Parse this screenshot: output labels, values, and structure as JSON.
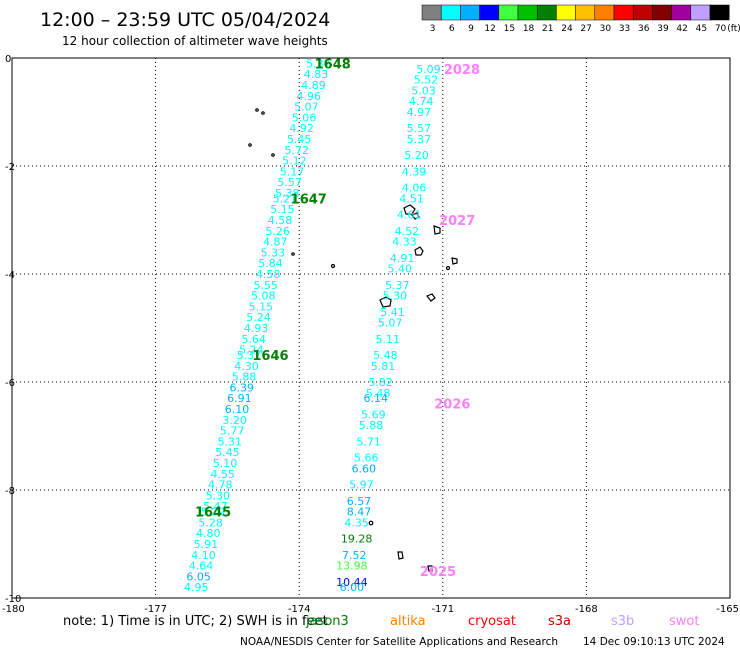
{
  "chart_data": {
    "type": "scatter",
    "title": "12:00 – 23:59 UTC 05/04/2024",
    "subtitle": "12 hour collection of altimeter wave heights",
    "xlim": [
      -180,
      -165
    ],
    "ylim": [
      -10,
      0
    ],
    "x_ticks": [
      "-180",
      "-177",
      "-174",
      "-171",
      "-168",
      "-165"
    ],
    "y_ticks": [
      "0",
      "-2",
      "-4",
      "-6",
      "-8",
      "-10"
    ],
    "grid": true,
    "legend": {
      "position": "top-right",
      "unit": "(ft)",
      "labels": [
        "3",
        "6",
        "9",
        "12",
        "15",
        "18",
        "21",
        "24",
        "27",
        "30",
        "33",
        "36",
        "39",
        "42",
        "45",
        "70"
      ],
      "colors": [
        "#808080",
        "#00ffff",
        "#00b0ff",
        "#0000ff",
        "#40ff40",
        "#00c000",
        "#008000",
        "#ffff00",
        "#ffc000",
        "#ff8000",
        "#ff0000",
        "#c00000",
        "#800000",
        "#a000a0",
        "#c0a0ff",
        "#000000"
      ]
    },
    "series": [
      {
        "name": "jason3",
        "color": "#008000",
        "passes": [
          {
            "label": "1648",
            "x": -173.3,
            "y": -0.1
          },
          {
            "label": "1647",
            "x": -173.8,
            "y": -2.6
          },
          {
            "label": "1646",
            "x": -174.6,
            "y": -5.5
          },
          {
            "label": "1645",
            "x": -175.8,
            "y": -8.4
          }
        ],
        "points": [
          {
            "x": -173.6,
            "y": -0.1,
            "v": "5.37",
            "c": "#00ffff"
          },
          {
            "x": -173.65,
            "y": -0.3,
            "v": "4.83",
            "c": "#00ffff"
          },
          {
            "x": -173.7,
            "y": -0.5,
            "v": "4.89",
            "c": "#00ffff"
          },
          {
            "x": -173.8,
            "y": -0.7,
            "v": "4.96",
            "c": "#00ffff"
          },
          {
            "x": -173.85,
            "y": -0.9,
            "v": "5.07",
            "c": "#00ffff"
          },
          {
            "x": -173.9,
            "y": -1.1,
            "v": "5.06",
            "c": "#00ffff"
          },
          {
            "x": -173.95,
            "y": -1.3,
            "v": "4.92",
            "c": "#00ffff"
          },
          {
            "x": -174.0,
            "y": -1.5,
            "v": "5.45",
            "c": "#00ffff"
          },
          {
            "x": -174.05,
            "y": -1.7,
            "v": "5.72",
            "c": "#00ffff"
          },
          {
            "x": -174.1,
            "y": -1.9,
            "v": "5.12",
            "c": "#00ffff"
          },
          {
            "x": -174.15,
            "y": -2.1,
            "v": "5.17",
            "c": "#00ffff"
          },
          {
            "x": -174.2,
            "y": -2.3,
            "v": "5.57",
            "c": "#00ffff"
          },
          {
            "x": -174.25,
            "y": -2.5,
            "v": "5.38",
            "c": "#00ffff"
          },
          {
            "x": -174.3,
            "y": -2.6,
            "v": "5.21",
            "c": "#00ffff"
          },
          {
            "x": -174.35,
            "y": -2.8,
            "v": "5.15",
            "c": "#00ffff"
          },
          {
            "x": -174.4,
            "y": -3.0,
            "v": "4.58",
            "c": "#00ffff"
          },
          {
            "x": -174.45,
            "y": -3.2,
            "v": "5.26",
            "c": "#00ffff"
          },
          {
            "x": -174.5,
            "y": -3.4,
            "v": "4.87",
            "c": "#00ffff"
          },
          {
            "x": -174.55,
            "y": -3.6,
            "v": "5.33",
            "c": "#00ffff"
          },
          {
            "x": -174.6,
            "y": -3.8,
            "v": "5.84",
            "c": "#00ffff"
          },
          {
            "x": -174.65,
            "y": -4.0,
            "v": "4.58",
            "c": "#00ffff"
          },
          {
            "x": -174.7,
            "y": -4.2,
            "v": "5.55",
            "c": "#00ffff"
          },
          {
            "x": -174.75,
            "y": -4.4,
            "v": "5.08",
            "c": "#00ffff"
          },
          {
            "x": -174.8,
            "y": -4.6,
            "v": "5.15",
            "c": "#00ffff"
          },
          {
            "x": -174.85,
            "y": -4.8,
            "v": "5.24",
            "c": "#00ffff"
          },
          {
            "x": -174.9,
            "y": -5.0,
            "v": "4.93",
            "c": "#00ffff"
          },
          {
            "x": -174.95,
            "y": -5.2,
            "v": "5.64",
            "c": "#00ffff"
          },
          {
            "x": -175.0,
            "y": -5.4,
            "v": "5.24",
            "c": "#00ffff"
          },
          {
            "x": -175.05,
            "y": -5.5,
            "v": "5.37",
            "c": "#00ffff"
          },
          {
            "x": -175.1,
            "y": -5.7,
            "v": "4.30",
            "c": "#00ffff"
          },
          {
            "x": -175.15,
            "y": -5.9,
            "v": "5.88",
            "c": "#00ffff"
          },
          {
            "x": -175.2,
            "y": -6.1,
            "v": "6.39",
            "c": "#00b0ff"
          },
          {
            "x": -175.25,
            "y": -6.3,
            "v": "6.91",
            "c": "#00b0ff"
          },
          {
            "x": -175.3,
            "y": -6.5,
            "v": "6.10",
            "c": "#00b0ff"
          },
          {
            "x": -175.35,
            "y": -6.7,
            "v": "3.20",
            "c": "#00ffff"
          },
          {
            "x": -175.4,
            "y": -6.9,
            "v": "5.77",
            "c": "#00ffff"
          },
          {
            "x": -175.45,
            "y": -7.1,
            "v": "5.31",
            "c": "#00ffff"
          },
          {
            "x": -175.5,
            "y": -7.3,
            "v": "5.45",
            "c": "#00ffff"
          },
          {
            "x": -175.55,
            "y": -7.5,
            "v": "5.10",
            "c": "#00ffff"
          },
          {
            "x": -175.6,
            "y": -7.7,
            "v": "4.55",
            "c": "#00ffff"
          },
          {
            "x": -175.65,
            "y": -7.9,
            "v": "4.78",
            "c": "#00ffff"
          },
          {
            "x": -175.7,
            "y": -8.1,
            "v": "5.30",
            "c": "#00ffff"
          },
          {
            "x": -175.75,
            "y": -8.3,
            "v": "5.47",
            "c": "#00ffff"
          },
          {
            "x": -175.8,
            "y": -8.4,
            "v": "5.29",
            "c": "#00ffff"
          },
          {
            "x": -175.85,
            "y": -8.6,
            "v": "5.28",
            "c": "#00ffff"
          },
          {
            "x": -175.9,
            "y": -8.8,
            "v": "4.80",
            "c": "#00ffff"
          },
          {
            "x": -175.95,
            "y": -9.0,
            "v": "5.91",
            "c": "#00ffff"
          },
          {
            "x": -176.0,
            "y": -9.2,
            "v": "4.10",
            "c": "#00ffff"
          },
          {
            "x": -176.05,
            "y": -9.4,
            "v": "4.64",
            "c": "#00ffff"
          },
          {
            "x": -176.1,
            "y": -9.6,
            "v": "6.05",
            "c": "#00b0ff"
          },
          {
            "x": -176.15,
            "y": -9.8,
            "v": "4.95",
            "c": "#00ffff"
          }
        ]
      },
      {
        "name": "swot",
        "color": "#ff80ff",
        "passes": [
          {
            "label": "2028",
            "x": -170.6,
            "y": -0.2
          },
          {
            "label": "2027",
            "x": -170.7,
            "y": -3.0
          },
          {
            "label": "2026",
            "x": -170.8,
            "y": -6.4
          },
          {
            "label": "2025",
            "x": -171.1,
            "y": -9.5
          }
        ],
        "points": [
          {
            "x": -171.3,
            "y": -0.2,
            "v": "5.09",
            "c": "#00ffff"
          },
          {
            "x": -171.35,
            "y": -0.4,
            "v": "5.52",
            "c": "#00ffff"
          },
          {
            "x": -171.4,
            "y": -0.6,
            "v": "5.03",
            "c": "#00ffff"
          },
          {
            "x": -171.45,
            "y": -0.8,
            "v": "4.74",
            "c": "#00ffff"
          },
          {
            "x": -171.5,
            "y": -1.0,
            "v": "4.97",
            "c": "#00ffff"
          },
          {
            "x": -171.5,
            "y": -1.3,
            "v": "5.57",
            "c": "#00ffff"
          },
          {
            "x": -171.5,
            "y": -1.5,
            "v": "5.37",
            "c": "#00ffff"
          },
          {
            "x": -171.55,
            "y": -1.8,
            "v": "5.20",
            "c": "#00ffff"
          },
          {
            "x": -171.6,
            "y": -2.1,
            "v": "4.39",
            "c": "#00ffff"
          },
          {
            "x": -171.6,
            "y": -2.4,
            "v": "4.06",
            "c": "#00ffff"
          },
          {
            "x": -171.65,
            "y": -2.6,
            "v": "4.51",
            "c": "#00ffff"
          },
          {
            "x": -171.7,
            "y": -2.9,
            "v": "4.61",
            "c": "#00ffff"
          },
          {
            "x": -171.75,
            "y": -3.2,
            "v": "4.52",
            "c": "#00ffff"
          },
          {
            "x": -171.8,
            "y": -3.4,
            "v": "4.33",
            "c": "#00ffff"
          },
          {
            "x": -171.85,
            "y": -3.7,
            "v": "4.91",
            "c": "#00ffff"
          },
          {
            "x": -171.9,
            "y": -3.9,
            "v": "5.40",
            "c": "#00ffff"
          },
          {
            "x": -171.95,
            "y": -4.2,
            "v": "5.37",
            "c": "#00ffff"
          },
          {
            "x": -172.0,
            "y": -4.4,
            "v": "5.30",
            "c": "#00ffff"
          },
          {
            "x": -172.05,
            "y": -4.7,
            "v": "5.41",
            "c": "#00ffff"
          },
          {
            "x": -172.1,
            "y": -4.9,
            "v": "5.07",
            "c": "#00ffff"
          },
          {
            "x": -172.15,
            "y": -5.2,
            "v": "5.11",
            "c": "#00ffff"
          },
          {
            "x": -172.2,
            "y": -5.5,
            "v": "5.48",
            "c": "#00ffff"
          },
          {
            "x": -172.25,
            "y": -5.7,
            "v": "5.81",
            "c": "#00ffff"
          },
          {
            "x": -172.3,
            "y": -6.0,
            "v": "5.82",
            "c": "#00ffff"
          },
          {
            "x": -172.35,
            "y": -6.2,
            "v": "5.48",
            "c": "#00ffff"
          },
          {
            "x": -172.4,
            "y": -6.3,
            "v": "6.14",
            "c": "#00b0ff"
          },
          {
            "x": -172.45,
            "y": -6.6,
            "v": "5.69",
            "c": "#00ffff"
          },
          {
            "x": -172.5,
            "y": -6.8,
            "v": "5.88",
            "c": "#00ffff"
          },
          {
            "x": -172.55,
            "y": -7.1,
            "v": "5.71",
            "c": "#00ffff"
          },
          {
            "x": -172.6,
            "y": -7.4,
            "v": "5.66",
            "c": "#00ffff"
          },
          {
            "x": -172.65,
            "y": -7.6,
            "v": "6.60",
            "c": "#00b0ff"
          },
          {
            "x": -172.7,
            "y": -7.9,
            "v": "5.97",
            "c": "#00ffff"
          },
          {
            "x": -172.75,
            "y": -8.2,
            "v": "6.57",
            "c": "#00b0ff"
          },
          {
            "x": -172.75,
            "y": -8.4,
            "v": "8.47",
            "c": "#00b0ff"
          },
          {
            "x": -172.8,
            "y": -8.6,
            "v": "4.35",
            "c": "#00ffff"
          },
          {
            "x": -172.8,
            "y": -8.9,
            "v": "19.28",
            "c": "#008000"
          },
          {
            "x": -172.85,
            "y": -9.2,
            "v": "7.52",
            "c": "#00b0ff"
          },
          {
            "x": -172.9,
            "y": -9.4,
            "v": "13.98",
            "c": "#40ff40"
          },
          {
            "x": -172.9,
            "y": -9.7,
            "v": "10.44",
            "c": "#0000ff"
          },
          {
            "x": -172.9,
            "y": -9.8,
            "v": "6.00",
            "c": "#00b0ff"
          }
        ]
      }
    ]
  },
  "note": "note:  1) Time is in UTC;  2) SWH is in feet",
  "satellites": [
    {
      "name": "jason3",
      "color": "#008000"
    },
    {
      "name": "altika",
      "color": "#ff8000"
    },
    {
      "name": "cryosat",
      "color": "#ff0000"
    },
    {
      "name": "s3a",
      "color": "#c00000"
    },
    {
      "name": "s3b",
      "color": "#c0a0ff"
    },
    {
      "name": "swot",
      "color": "#ff80ff"
    }
  ],
  "footer_left": "NOAA/NESDIS Center for Satellite Applications and Research",
  "footer_right": "14 Dec 09:10:13 UTC 2024"
}
